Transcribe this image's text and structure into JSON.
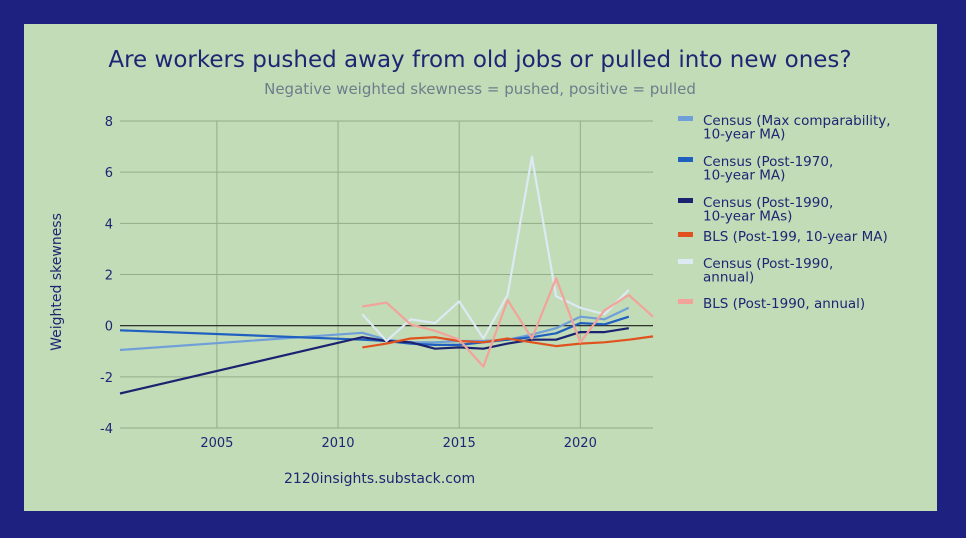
{
  "chart_data": {
    "type": "line",
    "title": "Are workers pushed away from old jobs or pulled into new ones?",
    "subtitle": "Negative weighted skewness = pushed, positive = pulled",
    "xlabel": "",
    "ylabel": "Weighted skewness",
    "source": "2120insights.substack.com",
    "xlim": [
      2001,
      2023
    ],
    "ylim": [
      -4,
      8
    ],
    "x_ticks": [
      2005,
      2010,
      2015,
      2020
    ],
    "y_ticks": [
      -4,
      -2,
      0,
      2,
      4,
      6,
      8
    ],
    "grid": true,
    "legend_position": "right",
    "series": [
      {
        "name": "Census (Max comparability, 10-year MA)",
        "legend_lines": [
          "Census (Max comparability,",
          "10-year MA)"
        ],
        "color": "#6f9fd8",
        "points": [
          [
            2001,
            -0.95
          ],
          [
            2011,
            -0.28
          ],
          [
            2012,
            -0.55
          ],
          [
            2013,
            -0.65
          ],
          [
            2014,
            -0.65
          ],
          [
            2015,
            -0.6
          ],
          [
            2016,
            -0.6
          ],
          [
            2017,
            -0.55
          ],
          [
            2018,
            -0.35
          ],
          [
            2019,
            -0.1
          ],
          [
            2020,
            0.35
          ],
          [
            2021,
            0.25
          ],
          [
            2022,
            0.7
          ]
        ]
      },
      {
        "name": "Census (Post-1970, 10-year MA)",
        "legend_lines": [
          "Census (Post-1970,",
          "10-year MA)"
        ],
        "color": "#1f5fbf",
        "points": [
          [
            2001,
            -0.18
          ],
          [
            2011,
            -0.55
          ],
          [
            2012,
            -0.6
          ],
          [
            2013,
            -0.7
          ],
          [
            2014,
            -0.75
          ],
          [
            2015,
            -0.75
          ],
          [
            2016,
            -0.65
          ],
          [
            2017,
            -0.55
          ],
          [
            2018,
            -0.45
          ],
          [
            2019,
            -0.3
          ],
          [
            2020,
            0.1
          ],
          [
            2021,
            0.05
          ],
          [
            2022,
            0.35
          ]
        ]
      },
      {
        "name": "Census (Post-1990, 10-year MAs)",
        "legend_lines": [
          "Census (Post-1990,",
          "10-year MAs)"
        ],
        "color": "#1b2270",
        "points": [
          [
            2001,
            -2.65
          ],
          [
            2011,
            -0.45
          ],
          [
            2012,
            -0.6
          ],
          [
            2013,
            -0.65
          ],
          [
            2014,
            -0.9
          ],
          [
            2015,
            -0.85
          ],
          [
            2016,
            -0.9
          ],
          [
            2017,
            -0.7
          ],
          [
            2018,
            -0.55
          ],
          [
            2019,
            -0.55
          ],
          [
            2020,
            -0.25
          ],
          [
            2021,
            -0.25
          ],
          [
            2022,
            -0.1
          ]
        ]
      },
      {
        "name": "BLS (Post-199, 10-year MA)",
        "legend_lines": [
          "BLS (Post-199, 10-year MA)"
        ],
        "color": "#e0521e",
        "points": [
          [
            2011,
            -0.85
          ],
          [
            2012,
            -0.7
          ],
          [
            2013,
            -0.5
          ],
          [
            2014,
            -0.45
          ],
          [
            2015,
            -0.6
          ],
          [
            2016,
            -0.65
          ],
          [
            2017,
            -0.5
          ],
          [
            2018,
            -0.65
          ],
          [
            2019,
            -0.8
          ],
          [
            2020,
            -0.7
          ],
          [
            2021,
            -0.65
          ],
          [
            2022,
            -0.55
          ],
          [
            2023,
            -0.42
          ]
        ]
      },
      {
        "name": "Census (Post-1990, annual)",
        "legend_lines": [
          "Census (Post-1990,",
          "annual)"
        ],
        "color": "#dde9f3",
        "points": [
          [
            2011,
            0.45
          ],
          [
            2012,
            -0.6
          ],
          [
            2013,
            0.25
          ],
          [
            2014,
            0.1
          ],
          [
            2015,
            0.95
          ],
          [
            2016,
            -0.5
          ],
          [
            2017,
            1.2
          ],
          [
            2018,
            6.6
          ],
          [
            2019,
            1.15
          ],
          [
            2020,
            0.7
          ],
          [
            2021,
            0.45
          ],
          [
            2022,
            1.4
          ]
        ]
      },
      {
        "name": "BLS (Post-1990, annual)",
        "legend_lines": [
          "BLS (Post-1990, annual)"
        ],
        "color": "#f2a39a",
        "points": [
          [
            2011,
            0.75
          ],
          [
            2012,
            0.9
          ],
          [
            2013,
            0.05
          ],
          [
            2014,
            -0.2
          ],
          [
            2015,
            -0.55
          ],
          [
            2016,
            -1.6
          ],
          [
            2017,
            1.0
          ],
          [
            2018,
            -0.5
          ],
          [
            2019,
            1.85
          ],
          [
            2020,
            -0.65
          ],
          [
            2021,
            0.6
          ],
          [
            2022,
            1.2
          ],
          [
            2023,
            0.35
          ]
        ]
      }
    ]
  }
}
